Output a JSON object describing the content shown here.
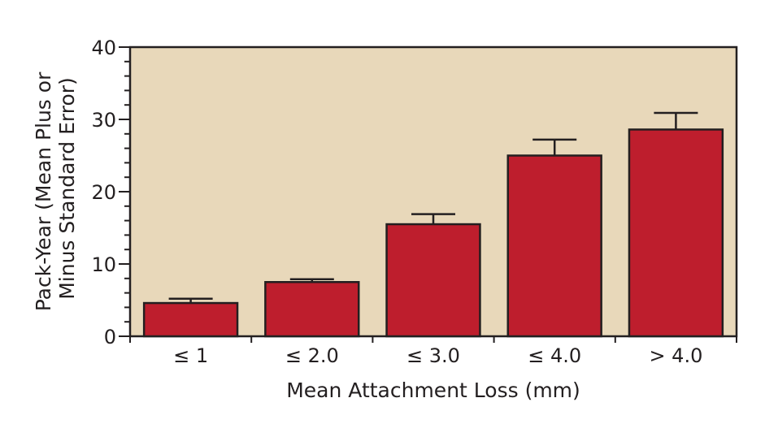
{
  "chart_data": {
    "type": "bar",
    "categories": [
      "≤ 1",
      "≤ 2.0",
      "≤ 3.0",
      "≤ 4.0",
      "> 4.0"
    ],
    "values": [
      4.6,
      7.5,
      15.5,
      25.0,
      28.6
    ],
    "error_plus": [
      0.6,
      0.4,
      1.4,
      2.2,
      2.3
    ],
    "xlabel": "Mean Attachment Loss (mm)",
    "ylabel_lines": [
      "Pack-Year (Mean Plus or",
      "Minus Standard Error)"
    ],
    "ylim": [
      0,
      40
    ],
    "yticks": [
      0,
      10,
      20,
      30,
      40
    ],
    "grid": false,
    "colors": {
      "bar": "#be1e2d",
      "background": "#e8d8ba",
      "axis": "#231f20"
    }
  }
}
